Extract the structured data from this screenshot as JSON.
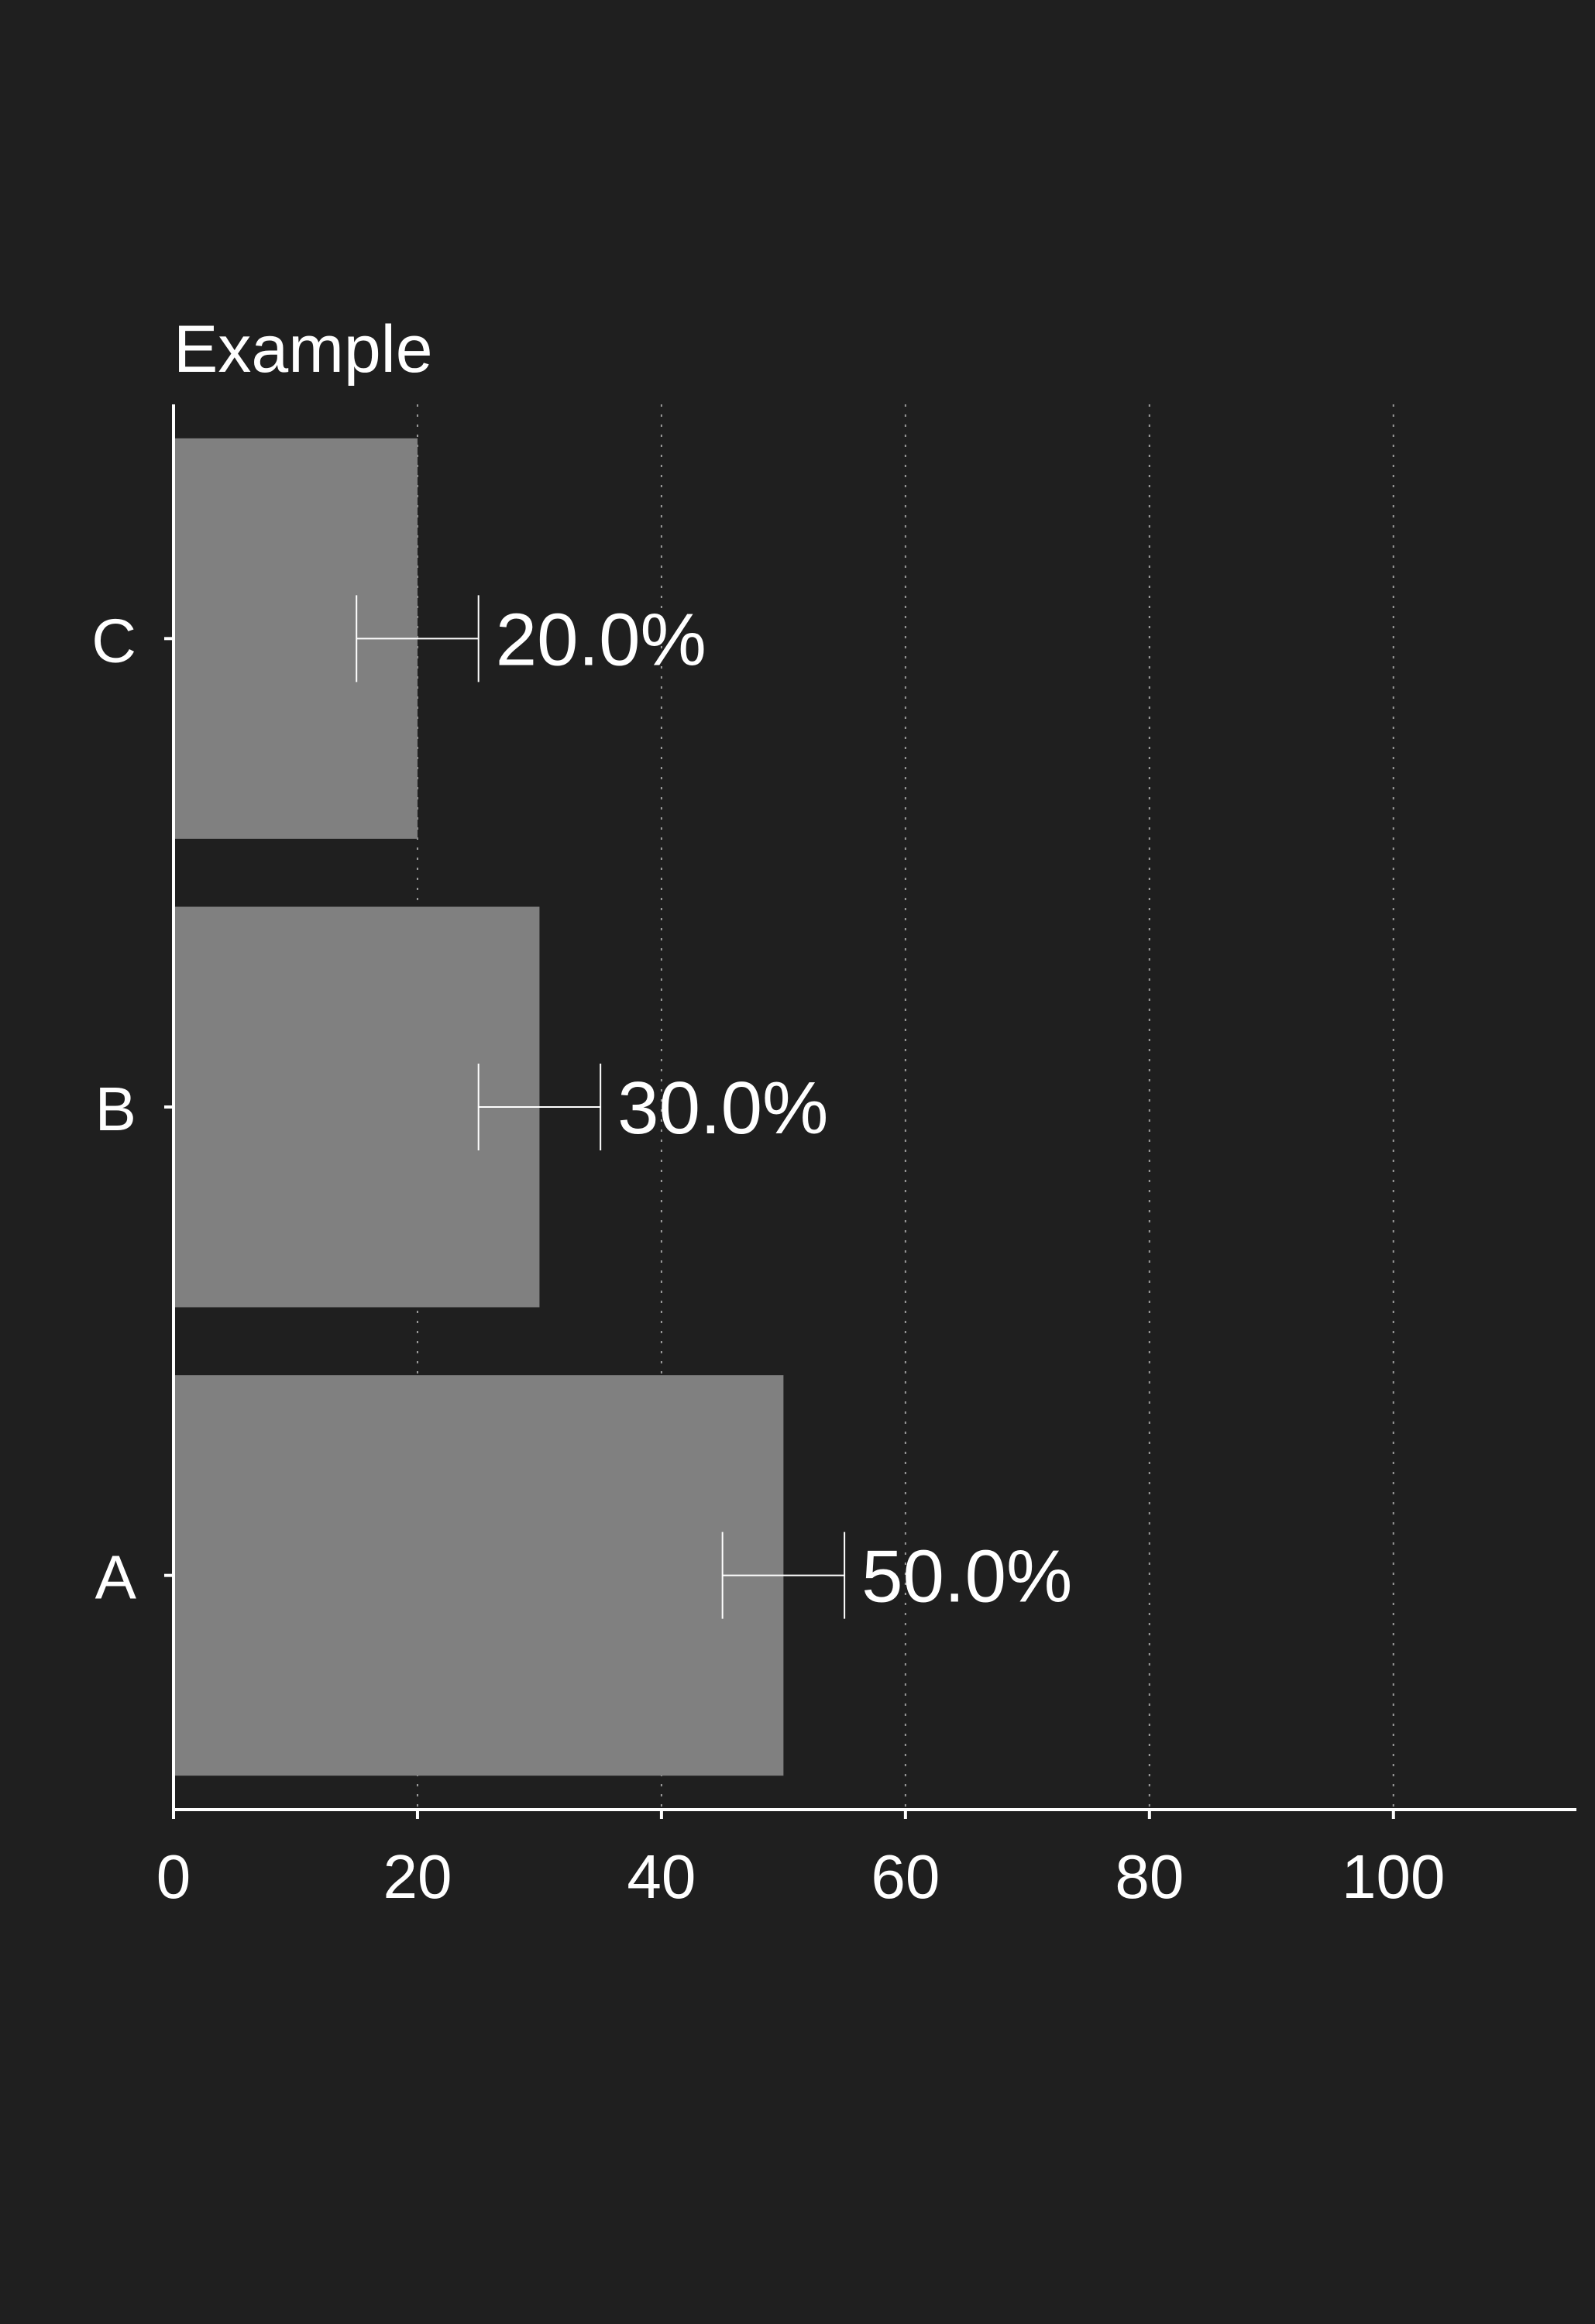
{
  "chart_data": {
    "type": "bar",
    "orientation": "horizontal",
    "title": "Example",
    "xlabel": "",
    "ylabel": "",
    "categories": [
      "A",
      "B",
      "C"
    ],
    "values": [
      50,
      30,
      20
    ],
    "error_bars": [
      {
        "low": 45,
        "high": 55
      },
      {
        "low": 25,
        "high": 35
      },
      {
        "low": 15,
        "high": 25
      }
    ],
    "data_labels": [
      "50.0%",
      "30.0%",
      "20.0%"
    ],
    "xlim": [
      0,
      115
    ],
    "xticks": [
      0,
      20,
      40,
      60,
      80,
      100
    ],
    "xtick_labels": [
      "0",
      "20",
      "40",
      "60",
      "80",
      "100"
    ],
    "grid": "vertical dotted",
    "legend": "none",
    "colors": {
      "background": "#1f1f1f",
      "bar": "#808080",
      "text": "#ffffff",
      "axis": "#ffffff",
      "grid": "#9a9a9a",
      "error_bar": "#ffffff"
    }
  }
}
